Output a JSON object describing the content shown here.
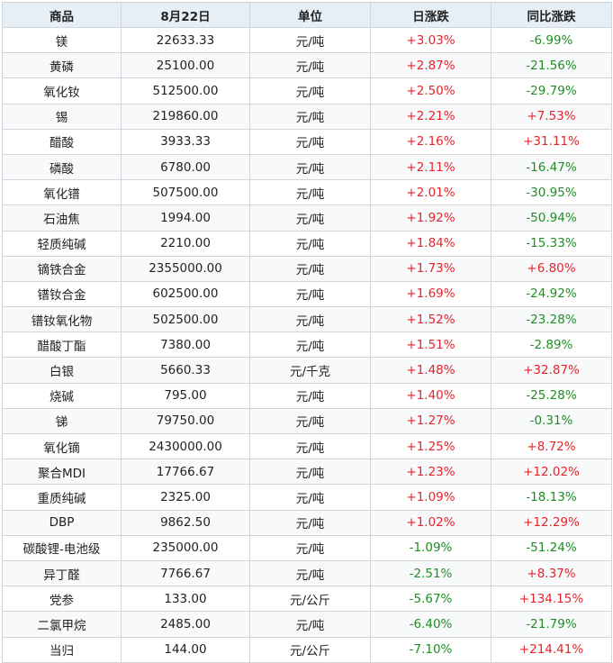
{
  "headers": [
    "商品",
    "8月22日",
    "单位",
    "日涨跌",
    "同比涨跌"
  ],
  "colors": {
    "rise": "#e8232a",
    "fall": "#1e8e22",
    "header_bg": "#e6eef6",
    "border": "#d2d6da"
  },
  "rows": [
    {
      "name": "镁",
      "price": "22633.33",
      "unit": "元/吨",
      "daily": "+3.03%",
      "yoy": "-6.99%"
    },
    {
      "name": "黄磷",
      "price": "25100.00",
      "unit": "元/吨",
      "daily": "+2.87%",
      "yoy": "-21.56%"
    },
    {
      "name": "氧化钕",
      "price": "512500.00",
      "unit": "元/吨",
      "daily": "+2.50%",
      "yoy": "-29.79%"
    },
    {
      "name": "锡",
      "price": "219860.00",
      "unit": "元/吨",
      "daily": "+2.21%",
      "yoy": "+7.53%"
    },
    {
      "name": "醋酸",
      "price": "3933.33",
      "unit": "元/吨",
      "daily": "+2.16%",
      "yoy": "+31.11%"
    },
    {
      "name": "磷酸",
      "price": "6780.00",
      "unit": "元/吨",
      "daily": "+2.11%",
      "yoy": "-16.47%"
    },
    {
      "name": "氧化镨",
      "price": "507500.00",
      "unit": "元/吨",
      "daily": "+2.01%",
      "yoy": "-30.95%"
    },
    {
      "name": "石油焦",
      "price": "1994.00",
      "unit": "元/吨",
      "daily": "+1.92%",
      "yoy": "-50.94%"
    },
    {
      "name": "轻质纯碱",
      "price": "2210.00",
      "unit": "元/吨",
      "daily": "+1.84%",
      "yoy": "-15.33%"
    },
    {
      "name": "镝铁合金",
      "price": "2355000.00",
      "unit": "元/吨",
      "daily": "+1.73%",
      "yoy": "+6.80%"
    },
    {
      "name": "镨钕合金",
      "price": "602500.00",
      "unit": "元/吨",
      "daily": "+1.69%",
      "yoy": "-24.92%"
    },
    {
      "name": "镨钕氧化物",
      "price": "502500.00",
      "unit": "元/吨",
      "daily": "+1.52%",
      "yoy": "-23.28%"
    },
    {
      "name": "醋酸丁酯",
      "price": "7380.00",
      "unit": "元/吨",
      "daily": "+1.51%",
      "yoy": "-2.89%"
    },
    {
      "name": "白银",
      "price": "5660.33",
      "unit": "元/千克",
      "daily": "+1.48%",
      "yoy": "+32.87%"
    },
    {
      "name": "烧碱",
      "price": "795.00",
      "unit": "元/吨",
      "daily": "+1.40%",
      "yoy": "-25.28%"
    },
    {
      "name": "锑",
      "price": "79750.00",
      "unit": "元/吨",
      "daily": "+1.27%",
      "yoy": "-0.31%"
    },
    {
      "name": "氧化镝",
      "price": "2430000.00",
      "unit": "元/吨",
      "daily": "+1.25%",
      "yoy": "+8.72%"
    },
    {
      "name": "聚合MDI",
      "price": "17766.67",
      "unit": "元/吨",
      "daily": "+1.23%",
      "yoy": "+12.02%"
    },
    {
      "name": "重质纯碱",
      "price": "2325.00",
      "unit": "元/吨",
      "daily": "+1.09%",
      "yoy": "-18.13%"
    },
    {
      "name": "DBP",
      "price": "9862.50",
      "unit": "元/吨",
      "daily": "+1.02%",
      "yoy": "+12.29%"
    },
    {
      "name": "碳酸锂-电池级",
      "price": "235000.00",
      "unit": "元/吨",
      "daily": "-1.09%",
      "yoy": "-51.24%"
    },
    {
      "name": "异丁醛",
      "price": "7766.67",
      "unit": "元/吨",
      "daily": "-2.51%",
      "yoy": "+8.37%"
    },
    {
      "name": "党参",
      "price": "133.00",
      "unit": "元/公斤",
      "daily": "-5.67%",
      "yoy": "+134.15%"
    },
    {
      "name": "二氯甲烷",
      "price": "2485.00",
      "unit": "元/吨",
      "daily": "-6.40%",
      "yoy": "-21.79%"
    },
    {
      "name": "当归",
      "price": "144.00",
      "unit": "元/公斤",
      "daily": "-7.10%",
      "yoy": "+214.41%"
    }
  ]
}
